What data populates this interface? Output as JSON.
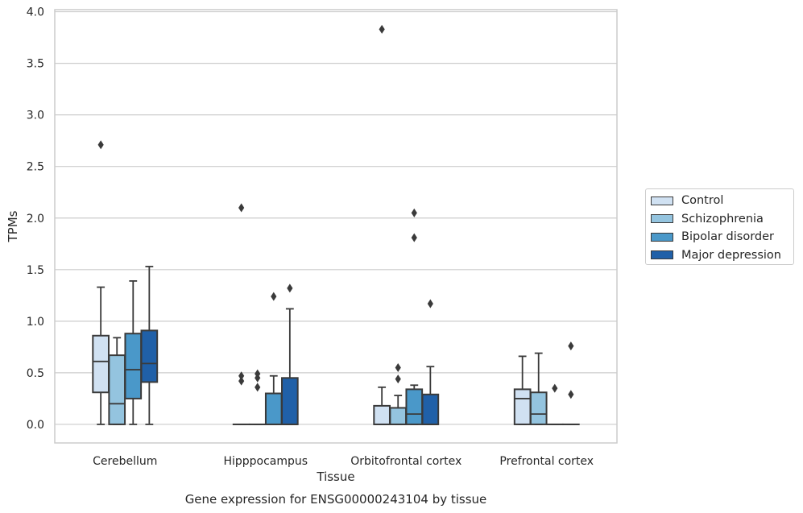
{
  "chart_data": {
    "type": "box",
    "title": "Gene expression for ENSG00000243104 by tissue",
    "xlabel": "Tissue",
    "ylabel": "TPMs",
    "ylim": [
      -0.18,
      4.02
    ],
    "yticks": [
      "0.0",
      "0.5",
      "1.0",
      "1.5",
      "2.0",
      "2.5",
      "3.0",
      "3.5",
      "4.0"
    ],
    "grid": true,
    "legend_position": "right",
    "categories": [
      "Cerebellum",
      "Hipppocampus",
      "Orbitofrontal cortex",
      "Prefrontal cortex"
    ],
    "series": [
      {
        "name": "Control",
        "color": "#d0e1f2",
        "boxes": [
          {
            "whislo": 0.0,
            "q1": 0.31,
            "med": 0.61,
            "q3": 0.86,
            "whishi": 1.33,
            "fliers": [
              2.71
            ]
          },
          {
            "whislo": 0.0,
            "q1": 0.0,
            "med": 0.0,
            "q3": 0.0,
            "whishi": 0.0,
            "fliers": [
              0.42,
              0.47,
              2.1
            ]
          },
          {
            "whislo": 0.0,
            "q1": 0.0,
            "med": 0.0,
            "q3": 0.18,
            "whishi": 0.36,
            "fliers": [
              3.83
            ]
          },
          {
            "whislo": 0.0,
            "q1": 0.0,
            "med": 0.25,
            "q3": 0.34,
            "whishi": 0.66,
            "fliers": []
          }
        ]
      },
      {
        "name": "Schizophrenia",
        "color": "#94c4df",
        "boxes": [
          {
            "whislo": 0.0,
            "q1": 0.0,
            "med": 0.2,
            "q3": 0.67,
            "whishi": 0.84,
            "fliers": []
          },
          {
            "whislo": 0.0,
            "q1": 0.0,
            "med": 0.0,
            "q3": 0.0,
            "whishi": 0.0,
            "fliers": [
              0.36,
              0.45,
              0.49
            ]
          },
          {
            "whislo": 0.0,
            "q1": 0.0,
            "med": 0.0,
            "q3": 0.16,
            "whishi": 0.28,
            "fliers": [
              0.44,
              0.55
            ]
          },
          {
            "whislo": 0.0,
            "q1": 0.0,
            "med": 0.1,
            "q3": 0.31,
            "whishi": 0.69,
            "fliers": []
          }
        ]
      },
      {
        "name": "Bipolar disorder",
        "color": "#4a98c9",
        "boxes": [
          {
            "whislo": 0.0,
            "q1": 0.25,
            "med": 0.53,
            "q3": 0.88,
            "whishi": 1.39,
            "fliers": []
          },
          {
            "whislo": 0.0,
            "q1": 0.0,
            "med": 0.0,
            "q3": 0.3,
            "whishi": 0.47,
            "fliers": [
              1.24
            ]
          },
          {
            "whislo": 0.0,
            "q1": 0.0,
            "med": 0.1,
            "q3": 0.34,
            "whishi": 0.38,
            "fliers": [
              1.81,
              2.05
            ]
          },
          {
            "whislo": 0.0,
            "q1": 0.0,
            "med": 0.0,
            "q3": 0.0,
            "whishi": 0.0,
            "fliers": [
              0.35
            ]
          }
        ]
      },
      {
        "name": "Major depression",
        "color": "#2060a8",
        "boxes": [
          {
            "whislo": 0.0,
            "q1": 0.41,
            "med": 0.59,
            "q3": 0.91,
            "whishi": 1.53,
            "fliers": []
          },
          {
            "whislo": 0.0,
            "q1": 0.0,
            "med": 0.0,
            "q3": 0.45,
            "whishi": 1.12,
            "fliers": [
              1.32
            ]
          },
          {
            "whislo": 0.0,
            "q1": 0.0,
            "med": 0.0,
            "q3": 0.29,
            "whishi": 0.56,
            "fliers": [
              1.17
            ]
          },
          {
            "whislo": 0.0,
            "q1": 0.0,
            "med": 0.0,
            "q3": 0.0,
            "whishi": 0.0,
            "fliers": [
              0.29,
              0.76
            ]
          }
        ]
      }
    ]
  }
}
